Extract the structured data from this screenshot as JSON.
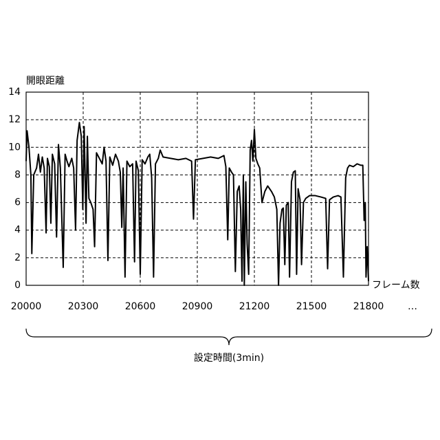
{
  "chart_data": {
    "type": "line",
    "y_label": "開眼距離",
    "x_label": "フレーム数",
    "x_more": "…",
    "span_label": "設定時間(3min)",
    "xlim": [
      20000,
      21800
    ],
    "xticks": [
      20000,
      20300,
      20600,
      20900,
      21200,
      21500,
      21800
    ],
    "ylim": [
      0,
      14
    ],
    "yticks": [
      0,
      2,
      4,
      6,
      8,
      10,
      12,
      14
    ],
    "grid": true,
    "x": [
      20000,
      20005,
      20015,
      20025,
      20030,
      20040,
      20055,
      20065,
      20075,
      20085,
      20095,
      20105,
      20112,
      20122,
      20130,
      20138,
      20150,
      20160,
      20170,
      20180,
      20195,
      20205,
      20215,
      20225,
      20240,
      20250,
      20260,
      20268,
      20280,
      20290,
      20298,
      20305,
      20315,
      20322,
      20330,
      20340,
      20352,
      20360,
      20370,
      20385,
      20400,
      20410,
      20420,
      20430,
      20440,
      20455,
      20470,
      20485,
      20495,
      20503,
      20510,
      20520,
      20530,
      20545,
      20560,
      20570,
      20578,
      20590,
      20600,
      20610,
      20625,
      20640,
      20650,
      20660,
      20670,
      20680,
      20695,
      20705,
      20720,
      20760,
      20800,
      20840,
      20870,
      20880,
      20890,
      20930,
      20970,
      21010,
      21040,
      21050,
      21060,
      21068,
      21080,
      21090,
      21100,
      21110,
      21120,
      21128,
      21135,
      21142,
      21147,
      21155,
      21162,
      21170,
      21178,
      21185,
      21192,
      21200,
      21208,
      21218,
      21228,
      21240,
      21255,
      21270,
      21290,
      21305,
      21318,
      21327,
      21335,
      21345,
      21352,
      21360,
      21368,
      21378,
      21385,
      21395,
      21405,
      21415,
      21422,
      21430,
      21440,
      21448,
      21458,
      21470,
      21490,
      21520,
      21550,
      21575,
      21585,
      21595,
      21615,
      21640,
      21655,
      21668,
      21680,
      21690,
      21700,
      21720,
      21740,
      21760,
      21770,
      21777,
      21783,
      21787,
      21793,
      21800
    ],
    "series": [
      {
        "color": "#000000",
        "values": [
          9,
          11.2,
          10,
          8,
          2.3,
          8,
          8.5,
          9.5,
          8.2,
          9.3,
          8.5,
          3.8,
          9.2,
          8.6,
          4.5,
          9.5,
          8.8,
          3.5,
          10.2,
          8.5,
          1.3,
          9.5,
          9,
          8.6,
          9.2,
          8.5,
          4,
          10.5,
          11.8,
          10.8,
          5.5,
          11.5,
          4.5,
          10.8,
          6.3,
          6,
          5.5,
          2.8,
          9.6,
          9.2,
          8.8,
          10,
          9,
          1.8,
          9.3,
          8.7,
          9.5,
          9,
          8.2,
          4.2,
          8.5,
          0.6,
          9,
          8.6,
          8.8,
          1.7,
          9,
          8.3,
          0.8,
          9.1,
          8.8,
          9.3,
          9.5,
          7.8,
          0.6,
          8.8,
          9.2,
          9.8,
          9.3,
          9.2,
          9.1,
          9.2,
          9,
          4.8,
          9.1,
          9.2,
          9.3,
          9.2,
          9.4,
          8.6,
          3.3,
          8.5,
          8.2,
          8,
          1,
          6.8,
          7.2,
          5.5,
          0.3,
          8,
          0,
          7.5,
          3,
          0.8,
          9.8,
          10.5,
          9,
          11.3,
          9.2,
          8.8,
          8.5,
          6,
          6.8,
          7.2,
          6.8,
          6.4,
          5.5,
          0,
          4.5,
          5.5,
          5.6,
          1.5,
          5.8,
          6,
          0.6,
          7.5,
          8.2,
          8.3,
          0.8,
          7,
          6.2,
          1.5,
          6,
          6.3,
          6.5,
          6.5,
          6.4,
          6.3,
          1.2,
          6.2,
          6.4,
          6.5,
          6.4,
          0.6,
          7.8,
          8.5,
          8.7,
          8.6,
          8.8,
          8.7,
          8.7,
          4.7,
          6,
          0.6,
          2.8,
          0.3
        ]
      }
    ]
  }
}
